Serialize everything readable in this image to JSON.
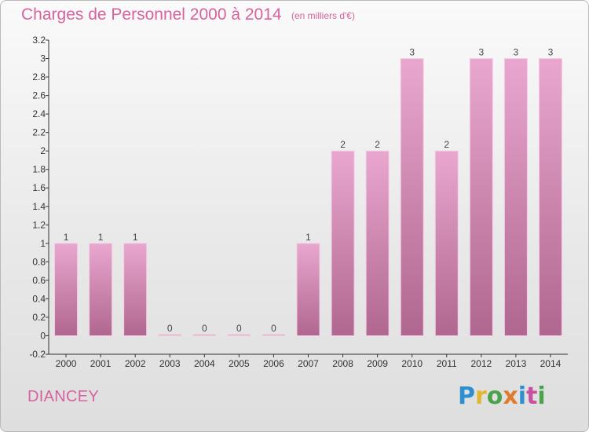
{
  "header": {
    "title": "Charges de Personnel 2000 à 2014",
    "unit": "(en milliers d'€)"
  },
  "commune": "DIANCEY",
  "brand": {
    "letters": [
      "P",
      "r",
      "o",
      "x",
      "i",
      "t",
      "i"
    ]
  },
  "colors": {
    "bar_light": "#e9a7cf",
    "bar_dark": "#b0678f",
    "text_accent": "#d7639e"
  },
  "chart_data": {
    "type": "bar",
    "title": "Charges de Personnel 2000 à 2014",
    "subtitle": "(en milliers d'€)",
    "categories": [
      "2000",
      "2001",
      "2002",
      "2003",
      "2004",
      "2005",
      "2006",
      "2007",
      "2008",
      "2009",
      "2010",
      "2011",
      "2012",
      "2013",
      "2014"
    ],
    "values": [
      1,
      1,
      1,
      0,
      0,
      0,
      0,
      1,
      2,
      2,
      3,
      2,
      3,
      3,
      3
    ],
    "data_labels": [
      "1",
      "1",
      "1",
      "0",
      "0",
      "0",
      "0",
      "1",
      "2",
      "2",
      "3",
      "2",
      "3",
      "3",
      "3"
    ],
    "yticks": [
      "-0.2",
      "0",
      "0.2",
      "0.4",
      "0.6",
      "0.8",
      "1",
      "1.2",
      "1.4",
      "1.6",
      "1.8",
      "2",
      "2.2",
      "2.4",
      "2.6",
      "2.8",
      "3",
      "3.2"
    ],
    "ylim": [
      -0.2,
      3.2
    ],
    "grid": false,
    "legend": "none"
  }
}
